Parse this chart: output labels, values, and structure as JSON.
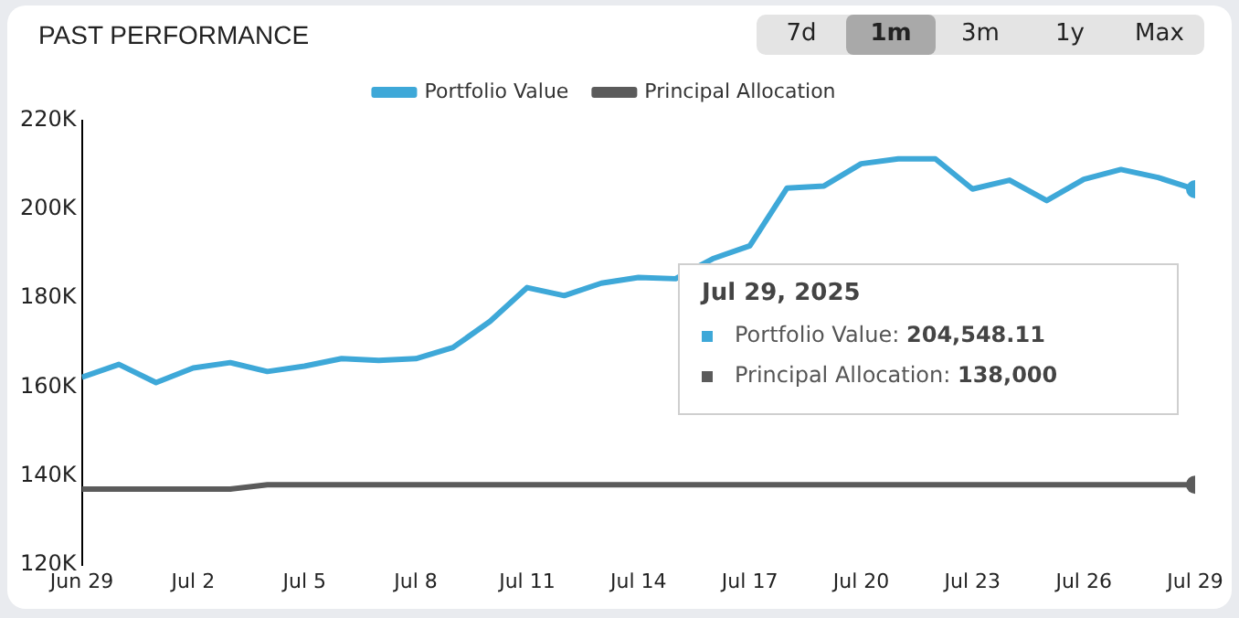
{
  "chart_data": {
    "type": "line",
    "title": "PAST PERFORMANCE",
    "x": [
      "2025-06-29",
      "2025-06-30",
      "2025-07-01",
      "2025-07-02",
      "2025-07-03",
      "2025-07-04",
      "2025-07-05",
      "2025-07-06",
      "2025-07-07",
      "2025-07-08",
      "2025-07-09",
      "2025-07-10",
      "2025-07-11",
      "2025-07-12",
      "2025-07-13",
      "2025-07-14",
      "2025-07-15",
      "2025-07-16",
      "2025-07-17",
      "2025-07-18",
      "2025-07-19",
      "2025-07-20",
      "2025-07-21",
      "2025-07-22",
      "2025-07-23",
      "2025-07-24",
      "2025-07-25",
      "2025-07-26",
      "2025-07-27",
      "2025-07-28",
      "2025-07-29"
    ],
    "series": [
      {
        "name": "Portfolio Value",
        "color": "#3ea8d8",
        "values": [
          162200,
          165100,
          161000,
          164300,
          165500,
          163500,
          164700,
          166400,
          166000,
          166400,
          168900,
          174800,
          182400,
          180600,
          183400,
          184700,
          184400,
          188900,
          191800,
          204800,
          205300,
          210300,
          211400,
          211400,
          204600,
          206600,
          202000,
          206800,
          209000,
          207200,
          204548.11
        ]
      },
      {
        "name": "Principal Allocation",
        "color": "#5b5b5b",
        "values": [
          137000,
          137000,
          137000,
          137000,
          137000,
          138000,
          138000,
          138000,
          138000,
          138000,
          138000,
          138000,
          138000,
          138000,
          138000,
          138000,
          138000,
          138000,
          138000,
          138000,
          138000,
          138000,
          138000,
          138000,
          138000,
          138000,
          138000,
          138000,
          138000,
          138000,
          138000
        ]
      }
    ],
    "xlim": [
      "2025-06-29",
      "2025-07-29"
    ],
    "xticks": [
      {
        "value": "2025-06-29",
        "label": "Jun 29"
      },
      {
        "value": "2025-07-02",
        "label": "Jul 2"
      },
      {
        "value": "2025-07-05",
        "label": "Jul 5"
      },
      {
        "value": "2025-07-08",
        "label": "Jul 8"
      },
      {
        "value": "2025-07-11",
        "label": "Jul 11"
      },
      {
        "value": "2025-07-14",
        "label": "Jul 14"
      },
      {
        "value": "2025-07-17",
        "label": "Jul 17"
      },
      {
        "value": "2025-07-20",
        "label": "Jul 20"
      },
      {
        "value": "2025-07-23",
        "label": "Jul 23"
      },
      {
        "value": "2025-07-26",
        "label": "Jul 26"
      },
      {
        "value": "2025-07-29",
        "label": "Jul 29"
      }
    ],
    "ylim": [
      120000,
      220000
    ],
    "yticks": [
      {
        "value": 120000,
        "label": "120K"
      },
      {
        "value": 140000,
        "label": "140K"
      },
      {
        "value": 160000,
        "label": "160K"
      },
      {
        "value": 180000,
        "label": "180K"
      },
      {
        "value": 200000,
        "label": "200K"
      },
      {
        "value": 220000,
        "label": "220K"
      }
    ],
    "grid": false,
    "legend": "top",
    "marker": "none",
    "line_style": "solid",
    "annotations": [
      "7d",
      "1m",
      "3m",
      "1y",
      "Max",
      "Jul 29, 2025\nPortfolio Value: 204,548.11\nPrincipal Allocation: 138,000"
    ]
  }
}
